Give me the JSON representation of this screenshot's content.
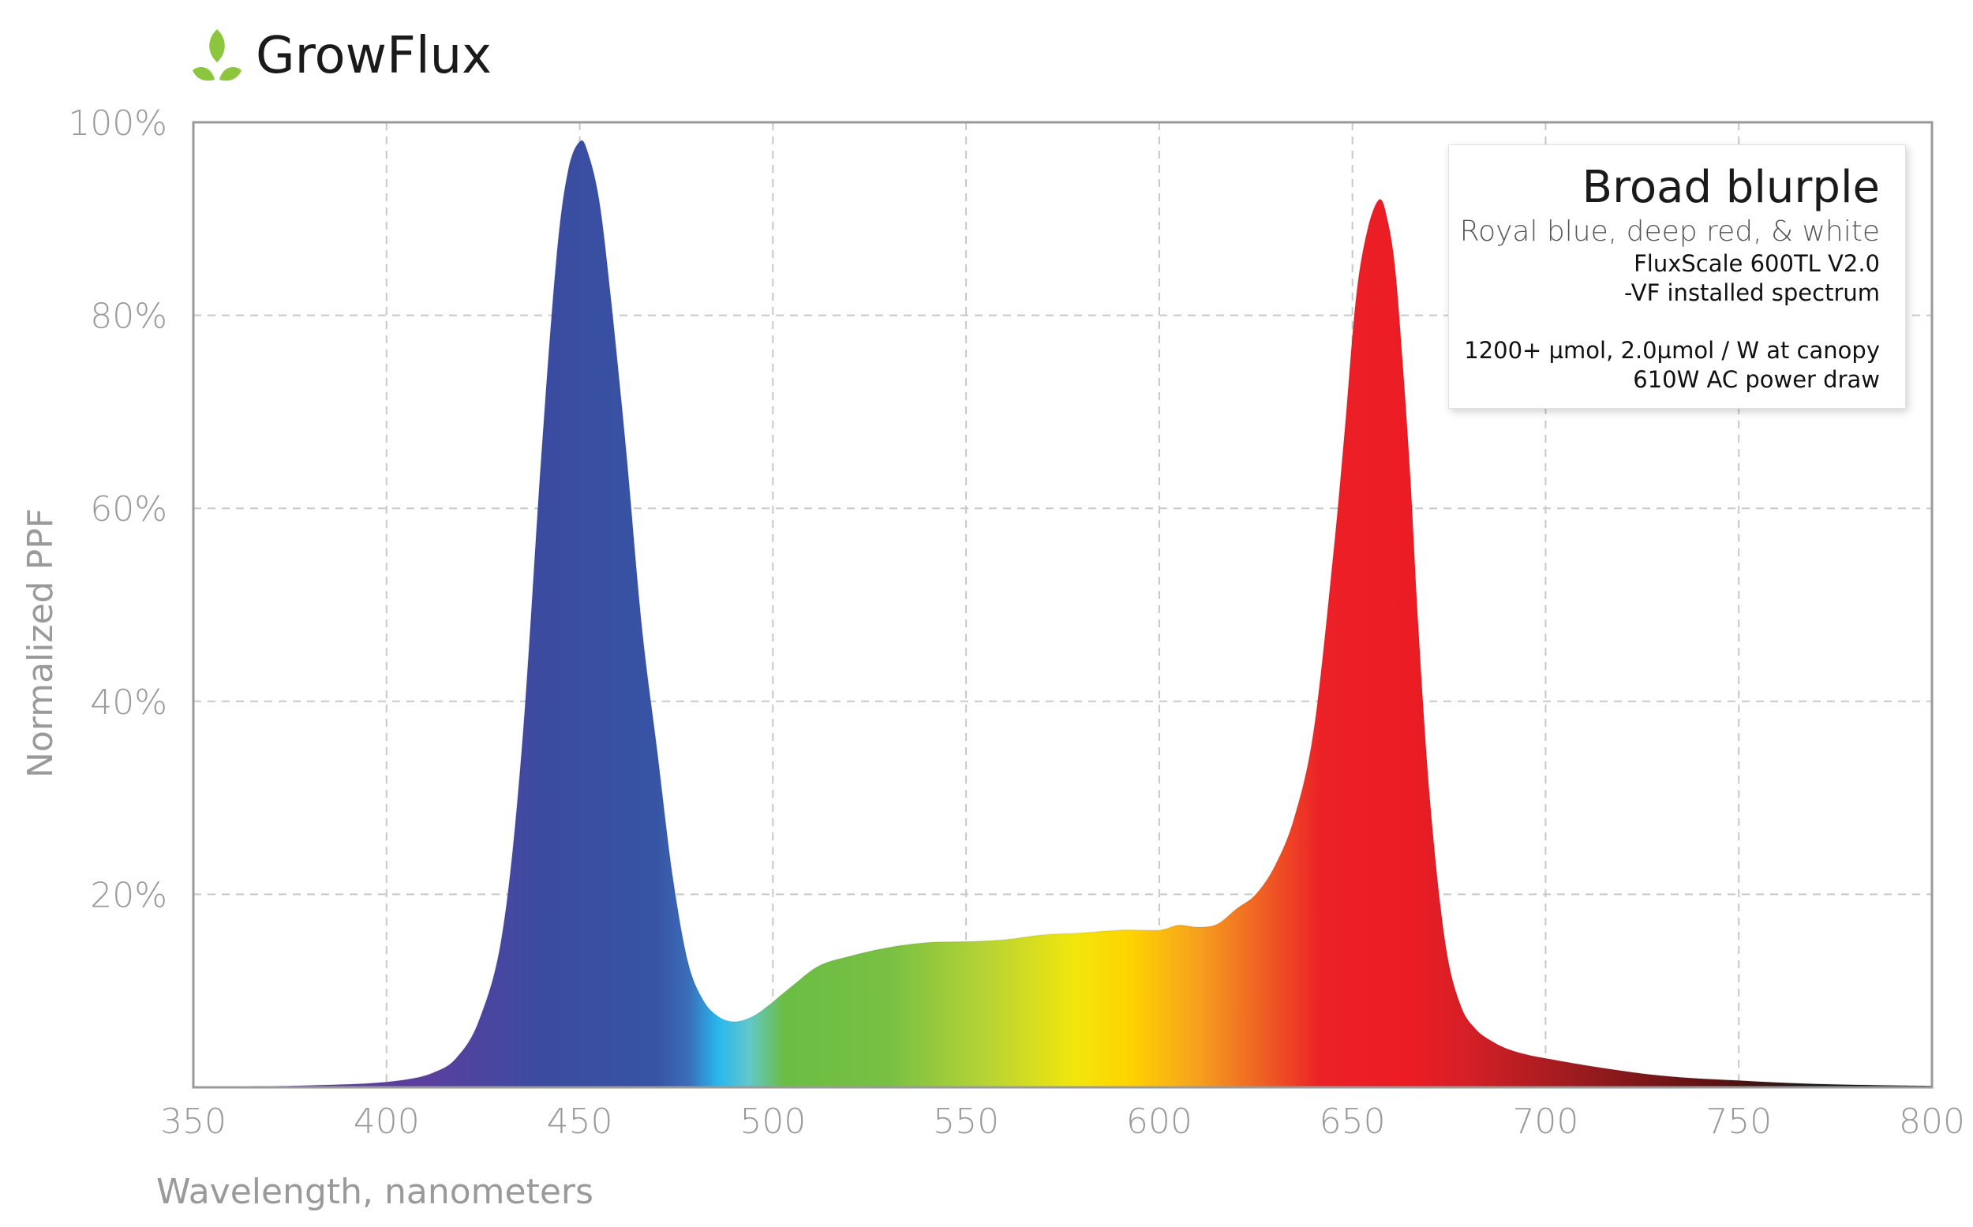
{
  "brand": {
    "name": "GrowFlux",
    "icon": "leaf-icon",
    "icon_color": "#8cc63f"
  },
  "legend": {
    "title": "Broad blurple",
    "subtitle": "Royal blue, deep red, & white",
    "product_line1": "FluxScale 600TL V2.0",
    "product_line2": "-VF installed spectrum",
    "spec_line1": "1200+ µmol, 2.0µmol / W at canopy",
    "spec_line2": "610W AC power draw"
  },
  "chart_data": {
    "type": "area",
    "title": "Broad blurple",
    "xlabel": "Wavelength, nanometers",
    "ylabel": "Normalized PPF",
    "xlim": [
      350,
      800
    ],
    "ylim": [
      0,
      100
    ],
    "x_ticks": [
      350,
      400,
      450,
      500,
      550,
      600,
      650,
      700,
      750,
      800
    ],
    "x_tick_labels": [
      "350",
      "400",
      "450",
      "500",
      "550",
      "600",
      "650",
      "700",
      "750",
      "800"
    ],
    "y_ticks": [
      20,
      40,
      60,
      80,
      100
    ],
    "y_tick_labels": [
      "20%",
      "40%",
      "60%",
      "80%",
      "100%"
    ],
    "grid": true,
    "series": [
      {
        "name": "Broad blurple",
        "x": [
          365,
          380,
          395,
          405,
          412,
          418,
          424,
          430,
          435,
          440,
          444,
          447,
          450,
          452,
          455,
          458,
          462,
          466,
          470,
          474,
          478,
          482,
          486,
          490,
          494,
          498,
          505,
          512,
          520,
          530,
          540,
          550,
          560,
          570,
          580,
          590,
          600,
          605,
          610,
          615,
          620,
          625,
          630,
          635,
          640,
          645,
          648,
          651,
          654,
          657,
          659,
          661,
          663,
          665,
          667,
          670,
          674,
          678,
          682,
          686,
          690,
          695,
          700,
          710,
          720,
          730,
          740,
          750,
          760,
          770,
          780,
          790,
          800
        ],
        "y": [
          0.1,
          0.2,
          0.4,
          0.8,
          1.5,
          3,
          7,
          16,
          35,
          65,
          86,
          95,
          98,
          97,
          92,
          82,
          66,
          48,
          35,
          22,
          13,
          9,
          7.3,
          6.8,
          7.2,
          8.2,
          10.5,
          12.6,
          13.6,
          14.5,
          15,
          15.1,
          15.3,
          15.8,
          16,
          16.3,
          16.3,
          16.8,
          16.6,
          16.9,
          18.5,
          20,
          23,
          28,
          37,
          55,
          68,
          82,
          89,
          92,
          90,
          85,
          75,
          63,
          48,
          30,
          15,
          8.5,
          6,
          4.8,
          4,
          3.4,
          3,
          2.3,
          1.7,
          1.2,
          0.9,
          0.7,
          0.5,
          0.35,
          0.25,
          0.2,
          0.15
        ]
      }
    ],
    "spectrum_colors": [
      {
        "nm": 410,
        "color": "#5b3f9f"
      },
      {
        "nm": 440,
        "color": "#3b4ba0"
      },
      {
        "nm": 470,
        "color": "#3754a4"
      },
      {
        "nm": 478,
        "color": "#3a6cb8"
      },
      {
        "nm": 486,
        "color": "#28b8ee"
      },
      {
        "nm": 494,
        "color": "#62c8c8"
      },
      {
        "nm": 503,
        "color": "#6bbd44"
      },
      {
        "nm": 530,
        "color": "#78c044"
      },
      {
        "nm": 555,
        "color": "#b7d335"
      },
      {
        "nm": 578,
        "color": "#f2e60c"
      },
      {
        "nm": 592,
        "color": "#ffd400"
      },
      {
        "nm": 610,
        "color": "#f6a01e"
      },
      {
        "nm": 628,
        "color": "#ef5a24"
      },
      {
        "nm": 642,
        "color": "#ec2027"
      },
      {
        "nm": 665,
        "color": "#ec1c24"
      },
      {
        "nm": 680,
        "color": "#d51f26"
      },
      {
        "nm": 710,
        "color": "#981b1e"
      },
      {
        "nm": 745,
        "color": "#5a1212"
      },
      {
        "nm": 770,
        "color": "#1a1a1a"
      },
      {
        "nm": 800,
        "color": "#111111"
      }
    ]
  }
}
